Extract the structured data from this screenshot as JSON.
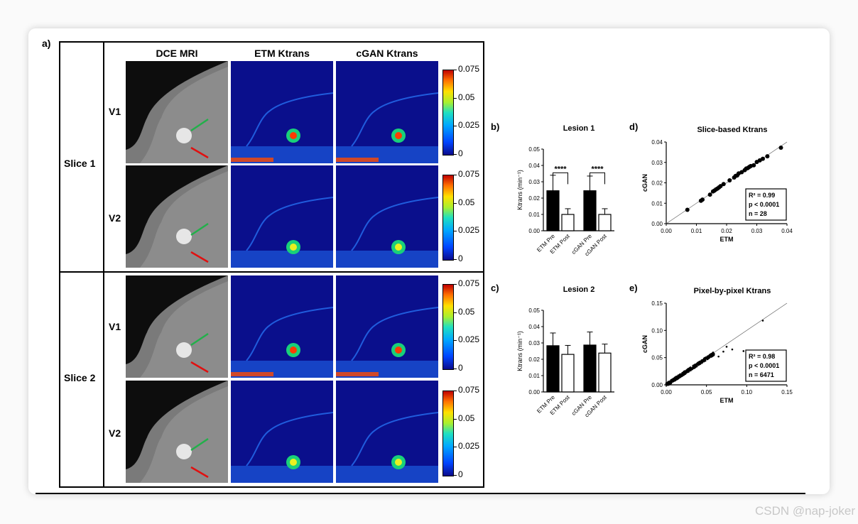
{
  "panel_a": {
    "label": "a)",
    "headers": [
      "DCE MRI",
      "ETM Ktrans",
      "cGAN Ktrans"
    ],
    "slices": [
      "Slice 1",
      "Slice 2"
    ],
    "visits": [
      "V1",
      "V2",
      "V1",
      "V2"
    ],
    "colorbar_ticks": [
      "0.075",
      "0.05",
      "0.025",
      "0"
    ]
  },
  "chart_data": [
    {
      "panel": "b)",
      "type": "bar",
      "title": "Lesion 1",
      "ylabel": "Ktrans (min⁻¹)",
      "categories": [
        "ETM Pre",
        "ETM Post",
        "cGAN Pre",
        "cGAN Post"
      ],
      "values": [
        0.0245,
        0.01,
        0.0245,
        0.01
      ],
      "errors": [
        0.0095,
        0.0035,
        0.009,
        0.0035
      ],
      "fills": [
        "#000000",
        "#ffffff",
        "#000000",
        "#ffffff"
      ],
      "significance": [
        "****",
        "****"
      ],
      "ylim": [
        0,
        0.05
      ],
      "yticks": [
        "0.00",
        "0.01",
        "0.02",
        "0.03",
        "0.04",
        "0.05"
      ]
    },
    {
      "panel": "c)",
      "type": "bar",
      "title": "Lesion 2",
      "ylabel": "Ktrans (min⁻¹)",
      "categories": [
        "ETM Pre",
        "ETM Post",
        "cGAN Pre",
        "cGAN Post"
      ],
      "values": [
        0.0283,
        0.023,
        0.0287,
        0.0238
      ],
      "errors": [
        0.0078,
        0.0055,
        0.008,
        0.0055
      ],
      "fills": [
        "#000000",
        "#ffffff",
        "#000000",
        "#ffffff"
      ],
      "ylim": [
        0,
        0.05
      ],
      "yticks": [
        "0.00",
        "0.01",
        "0.02",
        "0.03",
        "0.04",
        "0.05"
      ]
    },
    {
      "panel": "d)",
      "type": "scatter",
      "title": "Slice-based Ktrans",
      "xlabel": "ETM",
      "ylabel": "cGAN",
      "xlim": [
        0,
        0.04
      ],
      "ylim": [
        0,
        0.04
      ],
      "xticks": [
        "0.00",
        "0.01",
        "0.02",
        "0.03",
        "0.04"
      ],
      "yticks": [
        "0.00",
        "0.01",
        "0.02",
        "0.03",
        "0.04"
      ],
      "stats": [
        "R² = 0.99",
        "p < 0.0001",
        "n = 28"
      ],
      "x": [
        0.007,
        0.0115,
        0.012,
        0.0145,
        0.0155,
        0.016,
        0.0165,
        0.017,
        0.0175,
        0.018,
        0.019,
        0.021,
        0.0225,
        0.023,
        0.0235,
        0.024,
        0.025,
        0.026,
        0.0265,
        0.027,
        0.0275,
        0.028,
        0.029,
        0.03,
        0.031,
        0.032,
        0.0335,
        0.038
      ],
      "y": [
        0.0068,
        0.0112,
        0.0118,
        0.0142,
        0.0158,
        0.0162,
        0.0168,
        0.0172,
        0.0178,
        0.0184,
        0.0194,
        0.0212,
        0.0226,
        0.0234,
        0.0236,
        0.0246,
        0.0252,
        0.0262,
        0.027,
        0.0272,
        0.0278,
        0.0282,
        0.0286,
        0.0302,
        0.031,
        0.0318,
        0.033,
        0.0372
      ]
    },
    {
      "panel": "e)",
      "type": "scatter",
      "title": "Pixel-by-pixel Ktrans",
      "xlabel": "ETM",
      "ylabel": "cGAN",
      "xlim": [
        0,
        0.15
      ],
      "ylim": [
        0,
        0.15
      ],
      "xticks": [
        "0.00",
        "0.05",
        "0.10",
        "0.15"
      ],
      "yticks": [
        "0.00",
        "0.05",
        "0.10",
        "0.15"
      ],
      "stats": [
        "R² = 0.98",
        "p < 0.0001",
        "n = 6471"
      ]
    }
  ],
  "watermark": "CSDN @nap-joker"
}
